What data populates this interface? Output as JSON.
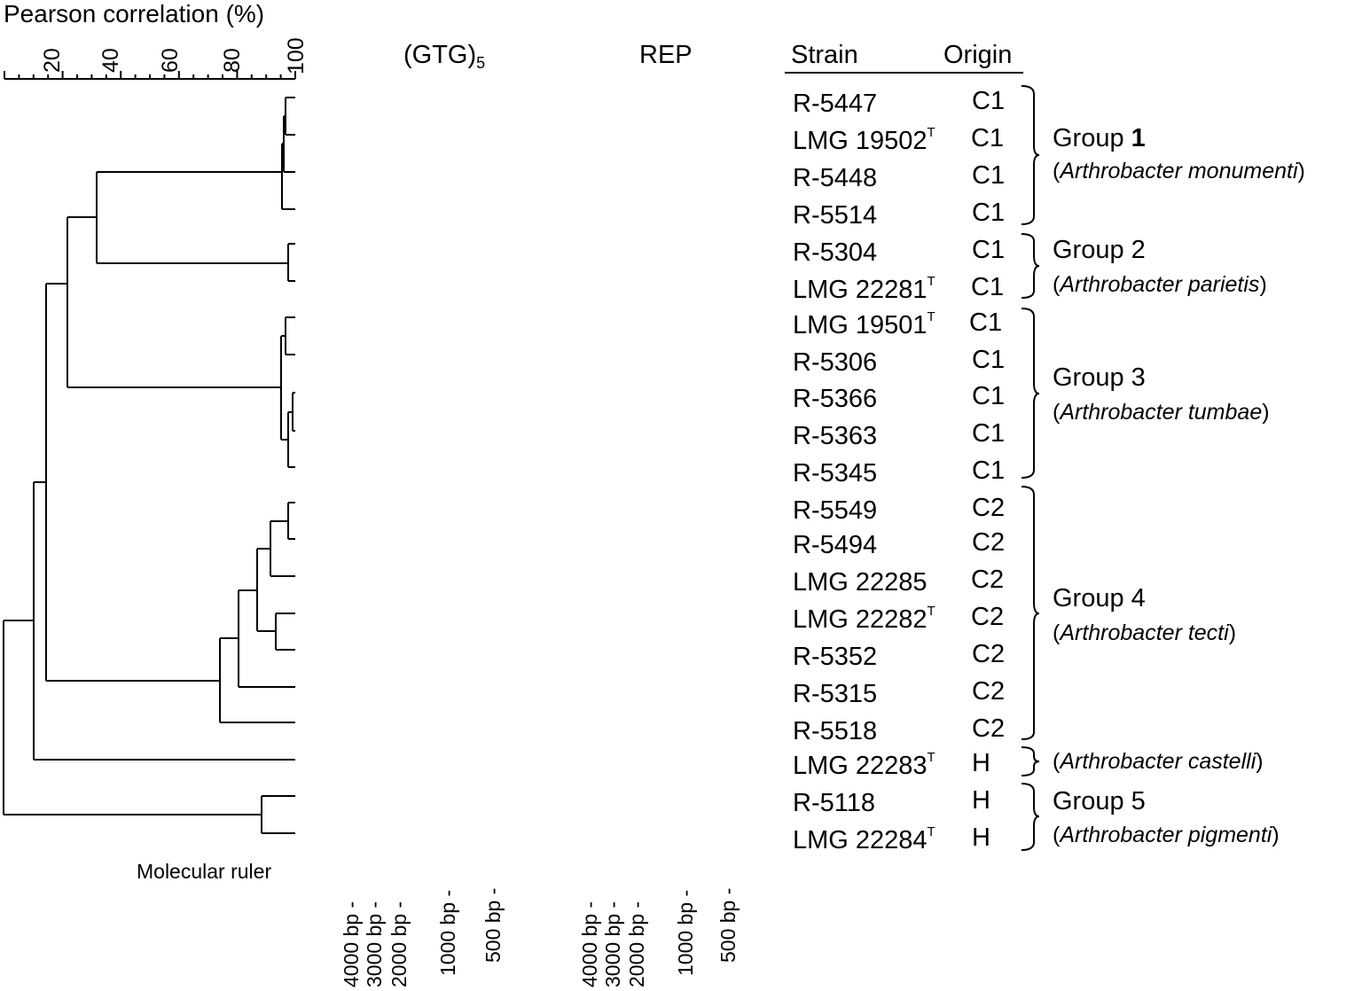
{
  "scale": {
    "title": "Pearson correlation (%)",
    "ticks": [
      "20",
      "40",
      "60",
      "80",
      "100"
    ]
  },
  "columns": {
    "gtg_main": "(GTG)",
    "gtg_sub": "5",
    "rep": "REP",
    "strain": "Strain",
    "origin": "Origin"
  },
  "strains": [
    {
      "name": "R-5447",
      "type": "",
      "origin": "C1"
    },
    {
      "name": "LMG 19502",
      "type": "T",
      "origin": "C1"
    },
    {
      "name": "R-5448",
      "type": "",
      "origin": "C1"
    },
    {
      "name": "R-5514",
      "type": "",
      "origin": "C1"
    },
    {
      "name": "R-5304",
      "type": "",
      "origin": "C1"
    },
    {
      "name": "LMG 22281",
      "type": "T",
      "origin": "C1"
    },
    {
      "name": "LMG 19501",
      "type": "T",
      "origin": "C1"
    },
    {
      "name": "R-5306",
      "type": "",
      "origin": "C1"
    },
    {
      "name": "R-5366",
      "type": "",
      "origin": "C1"
    },
    {
      "name": "R-5363",
      "type": "",
      "origin": "C1"
    },
    {
      "name": "R-5345",
      "type": "",
      "origin": "C1"
    },
    {
      "name": "R-5549",
      "type": "",
      "origin": "C2"
    },
    {
      "name": "R-5494",
      "type": "",
      "origin": "C2"
    },
    {
      "name": "LMG 22285",
      "type": "",
      "origin": "C2"
    },
    {
      "name": "LMG 22282",
      "type": "T",
      "origin": "C2"
    },
    {
      "name": "R-5352",
      "type": "",
      "origin": "C2"
    },
    {
      "name": "R-5315",
      "type": "",
      "origin": "C2"
    },
    {
      "name": "R-5518",
      "type": "",
      "origin": "C2"
    },
    {
      "name": "LMG 22283",
      "type": "T",
      "origin": "H"
    },
    {
      "name": "R-5118",
      "type": "",
      "origin": "H"
    },
    {
      "name": "LMG 22284",
      "type": "T",
      "origin": "H"
    }
  ],
  "groups": [
    {
      "label_prefix": "Group ",
      "number": "1",
      "open": "(",
      "species": "Arthrobacter monumenti",
      "close": ")"
    },
    {
      "label_prefix": "Group 2",
      "number": "",
      "open": "(",
      "species": "Arthrobacter parietis",
      "close": ")"
    },
    {
      "label_prefix": "Group 3",
      "number": "",
      "open": "(",
      "species": "Arthrobacter tumbae",
      "close": ")"
    },
    {
      "label_prefix": "Group 4",
      "number": "",
      "open": "(",
      "species": "Arthrobacter tecti",
      "close": ")"
    },
    {
      "label_prefix": "",
      "number": "",
      "open": "(",
      "species": "Arthrobacter castelli",
      "close": ")"
    },
    {
      "label_prefix": "Group 5",
      "number": "",
      "open": "(",
      "species": "Arthrobacter pigmenti",
      "close": ")"
    }
  ],
  "ruler": {
    "label": "Molecular ruler",
    "gtg_markers": [
      "4000 bp -",
      "3000 bp -",
      "2000 bp -",
      "1000 bp -",
      "500 bp -"
    ],
    "rep_markers": [
      "4000 bp -",
      "3000 bp -",
      "2000 bp -",
      "1000 bp -",
      "500 bp -"
    ]
  }
}
